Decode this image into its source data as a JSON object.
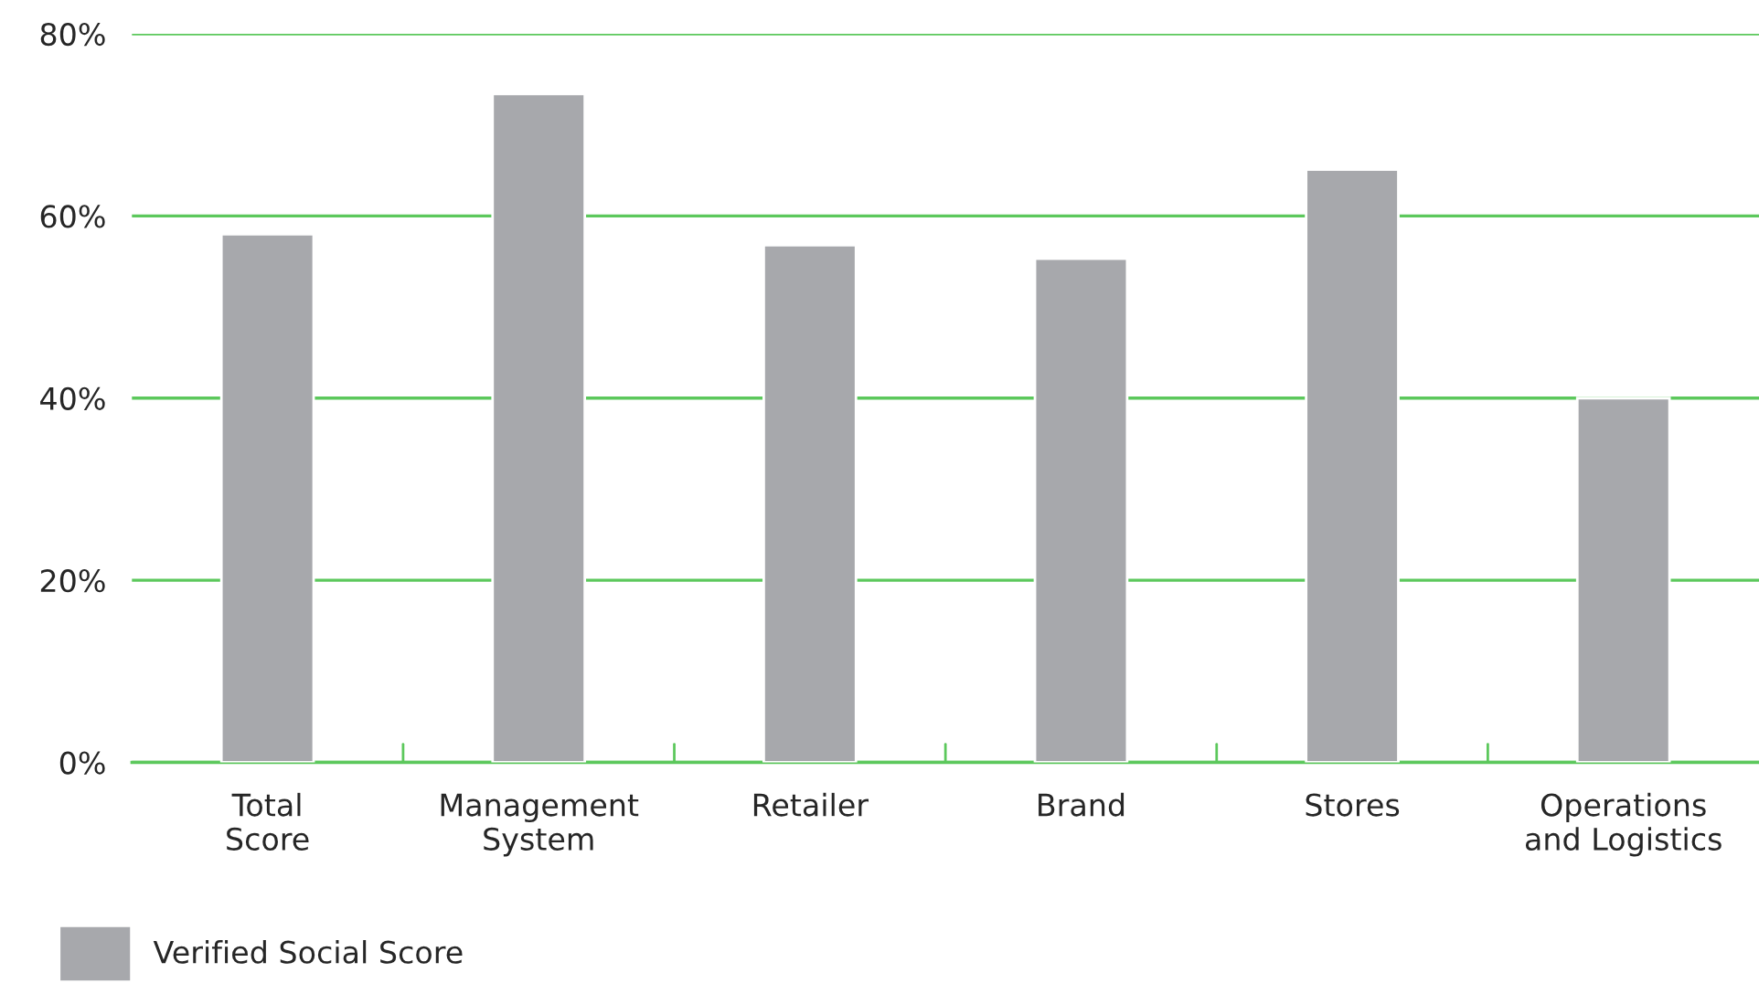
{
  "chart_data": {
    "type": "bar",
    "categories": [
      "Total\nScore",
      "Management\nSystem",
      "Retailer",
      "Brand",
      "Stores",
      "Operations\nand Logistics"
    ],
    "series": [
      {
        "name": "Verified Social Score",
        "color": "#a7a8ac",
        "values": [
          58,
          73.4,
          56.8,
          55.3,
          65.1,
          40
        ]
      }
    ],
    "ylim": [
      0,
      80
    ],
    "yticks": [
      {
        "value": 0,
        "label": "0%"
      },
      {
        "value": 20,
        "label": "20%"
      },
      {
        "value": 40,
        "label": "40%"
      },
      {
        "value": 60,
        "label": "60%"
      },
      {
        "value": 80,
        "label": "80%"
      }
    ],
    "grid": "y",
    "legend": "bottom left"
  }
}
